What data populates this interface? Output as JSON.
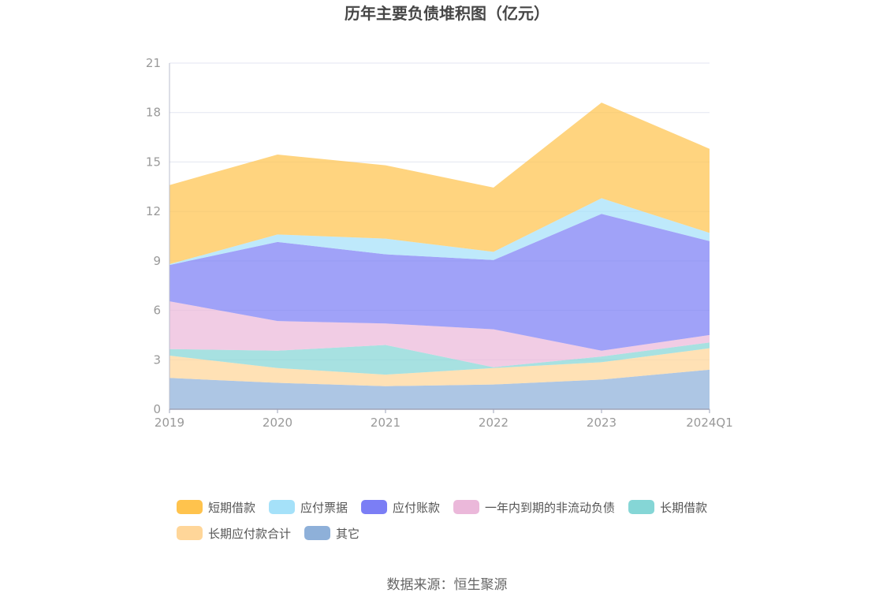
{
  "chart_data": {
    "type": "area",
    "stacked": true,
    "title": "历年主要负债堆积图（亿元）",
    "categories": [
      "2019",
      "2020",
      "2021",
      "2022",
      "2023",
      "2024Q1"
    ],
    "yticks": [
      "0",
      "3",
      "6",
      "9",
      "12",
      "15",
      "18",
      "21"
    ],
    "ylim": [
      0,
      21
    ],
    "grid": true,
    "legend_position": "bottom",
    "series": [
      {
        "name": "其它",
        "color": "#8eb0d9",
        "values": [
          1.9,
          1.6,
          1.4,
          1.5,
          1.8,
          2.4
        ]
      },
      {
        "name": "长期应付款合计",
        "color": "#ffd699",
        "values": [
          1.35,
          0.9,
          0.7,
          1.0,
          1.05,
          1.3
        ]
      },
      {
        "name": "长期借款",
        "color": "#85d6d6",
        "values": [
          0.4,
          1.05,
          1.8,
          0.05,
          0.35,
          0.35
        ]
      },
      {
        "name": "一年内到期的非流动负债",
        "color": "#ebb8da",
        "values": [
          2.9,
          1.8,
          1.3,
          2.3,
          0.35,
          0.45
        ]
      },
      {
        "name": "应付账款",
        "color": "#7b7ef5",
        "values": [
          2.2,
          4.8,
          4.2,
          4.2,
          8.3,
          5.7
        ]
      },
      {
        "name": "应付票据",
        "color": "#a5e1f9",
        "values": [
          0.05,
          0.45,
          0.95,
          0.5,
          0.95,
          0.5
        ]
      },
      {
        "name": "短期借款",
        "color": "#ffc34d",
        "values": [
          4.8,
          4.85,
          4.45,
          3.9,
          5.8,
          5.1
        ]
      }
    ],
    "legend_order": [
      "短期借款",
      "应付票据",
      "应付账款",
      "一年内到期的非流动负债",
      "长期借款",
      "长期应付款合计",
      "其它"
    ]
  },
  "footer": {
    "source": "数据来源：恒生聚源"
  }
}
